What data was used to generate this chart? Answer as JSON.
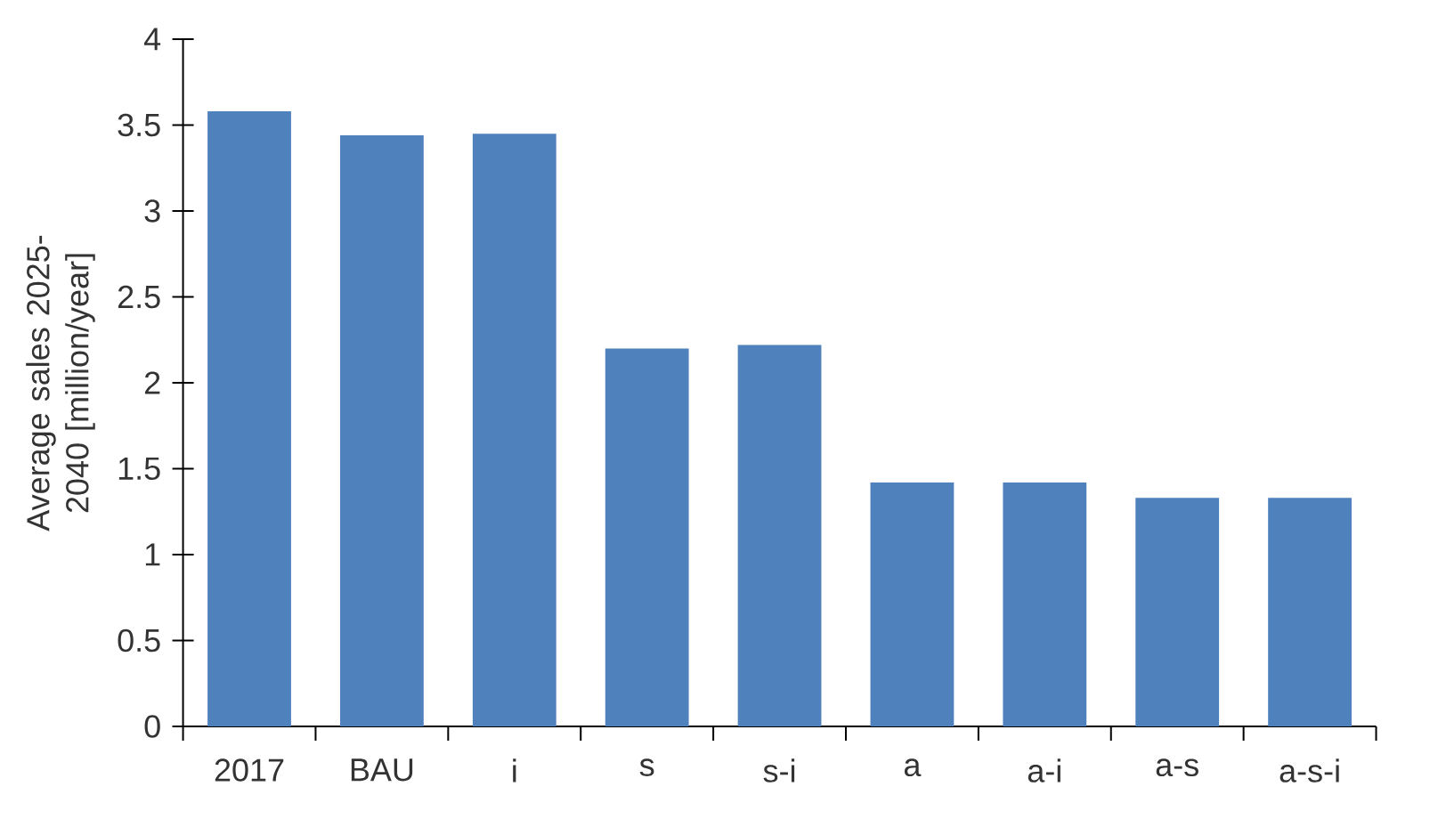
{
  "chart_data": {
    "type": "bar",
    "ylabel": "Average sales 2025-2040 [million/year]",
    "categories": [
      "2017",
      "BAU",
      "i",
      "s",
      "s-i",
      "a",
      "a-i",
      "a-s",
      "a-s-i"
    ],
    "values": [
      3.58,
      3.44,
      3.45,
      2.2,
      2.22,
      1.42,
      1.42,
      1.33,
      1.33
    ],
    "color": "#4f81bd",
    "ylim": [
      0,
      4
    ],
    "yticks": [
      0,
      0.5,
      1,
      1.5,
      2,
      2.5,
      3,
      3.5,
      4
    ]
  }
}
